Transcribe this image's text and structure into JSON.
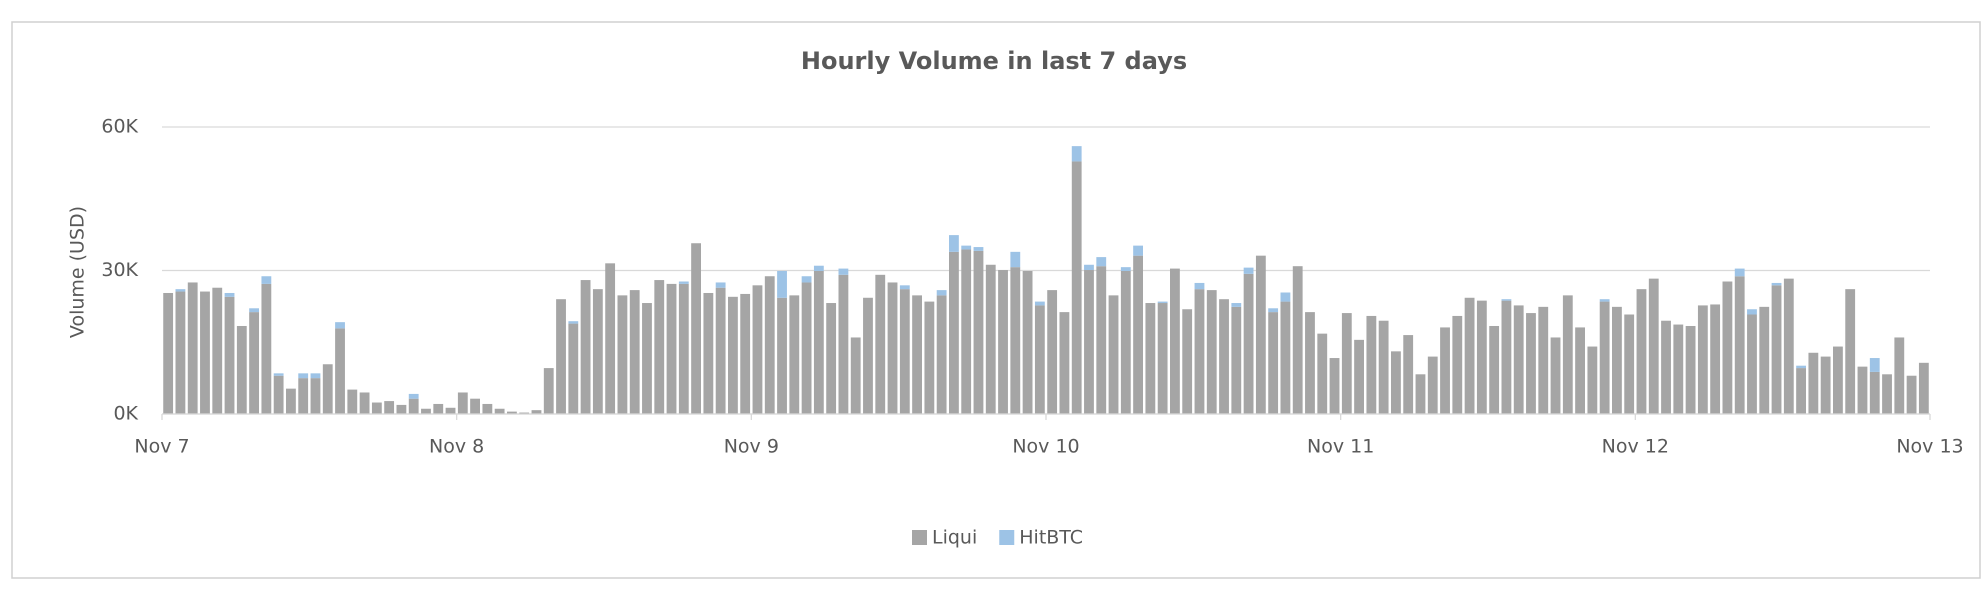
{
  "chart_data": {
    "type": "stacked-bar",
    "title": "Hourly Volume in last 7 days",
    "y_label": "Volume (USD)",
    "x": [
      0,
      1,
      2,
      3,
      4,
      5,
      6,
      7,
      8,
      9,
      10,
      11,
      12,
      13,
      14,
      15,
      16,
      17,
      18,
      19,
      20,
      21,
      22,
      23,
      24,
      25,
      26,
      27,
      28,
      29,
      30,
      31,
      32,
      33,
      34,
      35,
      36,
      37,
      38,
      39,
      40,
      41,
      42,
      43,
      44,
      45,
      46,
      47,
      48,
      49,
      50,
      51,
      52,
      53,
      54,
      55,
      56,
      57,
      58,
      59,
      60,
      61,
      62,
      63,
      64,
      65,
      66,
      67,
      68,
      69,
      70,
      71,
      72,
      73,
      74,
      75,
      76,
      77,
      78,
      79,
      80,
      81,
      82,
      83,
      84,
      85,
      86,
      87,
      88,
      89,
      90,
      91,
      92,
      93,
      94,
      95,
      96,
      97,
      98,
      99,
      100,
      101,
      102,
      103,
      104,
      105,
      106,
      107,
      108,
      109,
      110,
      111,
      112,
      113,
      114,
      115,
      116,
      117,
      118,
      119,
      120,
      121,
      122,
      123,
      124,
      125,
      126,
      127,
      128,
      129,
      130,
      131,
      132,
      133,
      134,
      135,
      136,
      137,
      138,
      139,
      140,
      141,
      142,
      143
    ],
    "xlim": [
      0,
      144
    ],
    "xticks": [
      {
        "value": 0,
        "label": "Nov 7"
      },
      {
        "value": 24,
        "label": "Nov 8"
      },
      {
        "value": 48,
        "label": "Nov 9"
      },
      {
        "value": 72,
        "label": "Nov 10"
      },
      {
        "value": 96,
        "label": "Nov 11"
      },
      {
        "value": 120,
        "label": "Nov 12"
      },
      {
        "value": 144,
        "label": "Nov 13"
      }
    ],
    "ylim": [
      0,
      60000
    ],
    "yticks": [
      {
        "value": 0,
        "label": "0K"
      },
      {
        "value": 30000,
        "label": "30K"
      },
      {
        "value": 60000,
        "label": "60K"
      }
    ],
    "grid": true,
    "legend": "bottom",
    "series": [
      {
        "name": "Liqui",
        "color": "#a5a5a5",
        "values": [
          25300,
          25600,
          27500,
          25600,
          26400,
          24500,
          18400,
          21300,
          27200,
          8000,
          5300,
          7500,
          7500,
          10400,
          17900,
          5100,
          4500,
          2400,
          2700,
          1900,
          3200,
          1100,
          2100,
          1300,
          4500,
          3200,
          2100,
          1100,
          500,
          300,
          800,
          9600,
          24000,
          18900,
          28000,
          26100,
          31500,
          24800,
          25900,
          23200,
          28000,
          27200,
          27200,
          35700,
          25300,
          26400,
          24500,
          25100,
          26900,
          28800,
          24300,
          24800,
          27500,
          29900,
          23200,
          29100,
          16000,
          24300,
          29100,
          27500,
          26100,
          24800,
          23500,
          24800,
          33900,
          34400,
          34100,
          31200,
          30100,
          30700,
          29900,
          22700,
          25900,
          21300,
          52800,
          30100,
          30900,
          24800,
          29900,
          33100,
          23200,
          23200,
          30400,
          21900,
          26100,
          25900,
          24000,
          22400,
          29300,
          33100,
          21300,
          23500,
          30900,
          21300,
          16800,
          11700,
          21100,
          15500,
          20500,
          19500,
          13100,
          16500,
          8300,
          12000,
          18100,
          20500,
          24300,
          23700,
          18400,
          23700,
          22700,
          21100,
          22400,
          16000,
          24800,
          18100,
          14100,
          23500,
          22400,
          20800,
          26100,
          28300,
          19500,
          18700,
          18400,
          22700,
          22900,
          27700,
          28800,
          20800,
          22400,
          26900,
          28300,
          9600,
          12800,
          12000,
          14100,
          26100,
          9900,
          8800,
          8300,
          16000,
          8000,
          10700
        ]
      },
      {
        "name": "HitBTC",
        "color": "#9dc3e6",
        "values": [
          0,
          500,
          0,
          0,
          0,
          800,
          0,
          800,
          1600,
          500,
          0,
          1000,
          1000,
          0,
          1300,
          0,
          0,
          0,
          0,
          0,
          1000,
          0,
          0,
          0,
          0,
          0,
          0,
          0,
          0,
          0,
          0,
          0,
          0,
          500,
          0,
          0,
          0,
          0,
          0,
          0,
          0,
          0,
          500,
          0,
          0,
          1100,
          0,
          0,
          0,
          0,
          5600,
          0,
          1300,
          1100,
          0,
          1300,
          0,
          0,
          0,
          0,
          800,
          0,
          0,
          1100,
          3500,
          800,
          800,
          0,
          0,
          3200,
          0,
          800,
          0,
          0,
          3200,
          1100,
          1900,
          0,
          800,
          2100,
          0,
          300,
          0,
          0,
          1300,
          0,
          0,
          800,
          1300,
          0,
          800,
          1900,
          0,
          0,
          0,
          0,
          0,
          0,
          0,
          0,
          0,
          0,
          0,
          0,
          0,
          0,
          0,
          0,
          0,
          300,
          0,
          0,
          0,
          0,
          0,
          0,
          0,
          500,
          0,
          0,
          0,
          0,
          0,
          0,
          0,
          0,
          0,
          0,
          1600,
          1100,
          0,
          500,
          0,
          500,
          0,
          0,
          0,
          0,
          0,
          2900,
          0,
          0,
          0,
          0
        ]
      }
    ]
  }
}
